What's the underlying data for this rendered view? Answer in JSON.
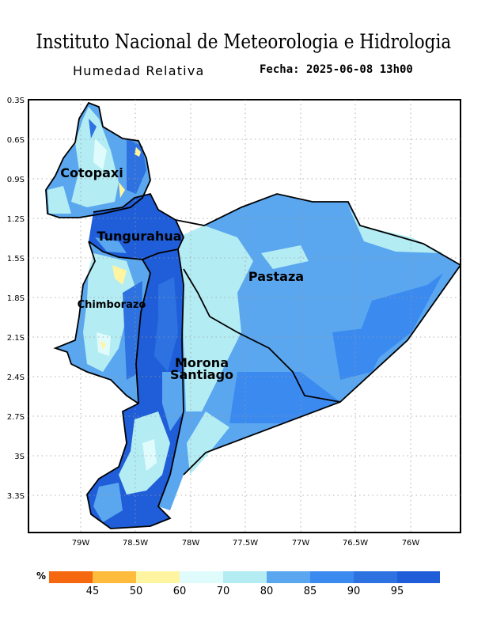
{
  "header": {
    "title": "Instituto Nacional de Meteorologia e Hidrologia",
    "subtitle": "Humedad Relativa",
    "date": "Fecha: 2025-06-08 13h00"
  },
  "map": {
    "lat_ticks": [
      "0.3S",
      "0.6S",
      "0.9S",
      "1.2S",
      "1.5S",
      "1.8S",
      "2.1S",
      "2.4S",
      "2.7S",
      "3S",
      "3.3S"
    ],
    "lon_ticks": [
      "79W",
      "78.5W",
      "78W",
      "77.5W",
      "77W",
      "76.5W",
      "76W"
    ],
    "provinces": {
      "cotopaxi": "Cotopaxi",
      "tungurahua": "Tungurahua",
      "chimborazo": "Chimborazo",
      "pastaza": "Pastaza",
      "morona_1": "Morona",
      "morona_2": "Santiago"
    }
  },
  "legend": {
    "unit": "%",
    "labels": [
      "45",
      "50",
      "60",
      "70",
      "80",
      "85",
      "90",
      "95"
    ],
    "colors": [
      "#f5680f",
      "#ffbc3c",
      "#fff5a0",
      "#e0fbfb",
      "#b4ecf4",
      "#5aa7ef",
      "#3b8af0",
      "#2d72e0",
      "#1f5ed8"
    ]
  }
}
